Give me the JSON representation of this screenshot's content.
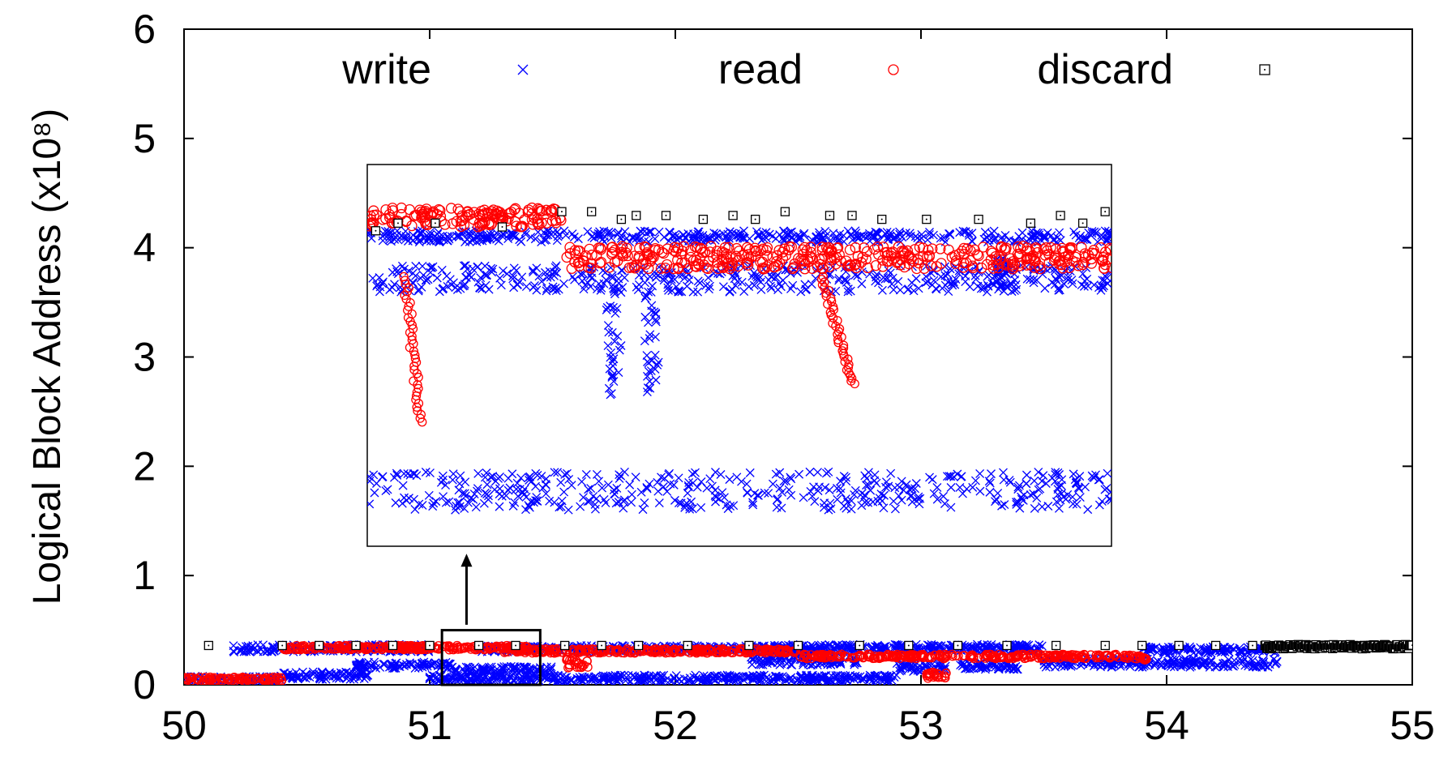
{
  "chart_data": {
    "type": "scatter",
    "title": "",
    "xlabel": "",
    "ylabel": "Logical Block Address (x10⁸)",
    "xlim": [
      50,
      55
    ],
    "ylim": [
      0,
      6
    ],
    "xticks": [
      "50",
      "51",
      "52",
      "53",
      "54",
      "55"
    ],
    "yticks": [
      "0",
      "1",
      "2",
      "3",
      "4",
      "5",
      "6"
    ],
    "grid": false,
    "legend": "top, horizontal",
    "series": [
      {
        "name": "write",
        "marker": "x",
        "color": "#0000ff",
        "bands": [
          {
            "x": [
              50.0,
              50.4
            ],
            "y": [
              0.02,
              0.08
            ]
          },
          {
            "x": [
              50.2,
              51.0
            ],
            "y": [
              0.3,
              0.37
            ]
          },
          {
            "x": [
              50.4,
              50.75
            ],
            "y": [
              0.05,
              0.12
            ]
          },
          {
            "x": [
              50.7,
              51.1
            ],
            "y": [
              0.15,
              0.21
            ]
          },
          {
            "x": [
              51.0,
              52.9
            ],
            "y": [
              0.02,
              0.09
            ]
          },
          {
            "x": [
              51.1,
              51.5
            ],
            "y": [
              0.1,
              0.17
            ]
          },
          {
            "x": [
              51.2,
              52.6
            ],
            "y": [
              0.3,
              0.36
            ]
          },
          {
            "x": [
              52.3,
              52.75
            ],
            "y": [
              0.18,
              0.27
            ]
          },
          {
            "x": [
              52.4,
              53.5
            ],
            "y": [
              0.31,
              0.37
            ]
          },
          {
            "x": [
              52.9,
              53.1
            ],
            "y": [
              0.12,
              0.2
            ]
          },
          {
            "x": [
              53.15,
              53.4
            ],
            "y": [
              0.14,
              0.2
            ]
          },
          {
            "x": [
              53.5,
              54.45
            ],
            "y": [
              0.16,
              0.24
            ]
          },
          {
            "x": [
              53.9,
              54.45
            ],
            "y": [
              0.29,
              0.35
            ]
          }
        ]
      },
      {
        "name": "read",
        "marker": "o",
        "color": "#ff0000",
        "bands": [
          {
            "x": [
              50.0,
              50.4
            ],
            "y": [
              0.03,
              0.07
            ]
          },
          {
            "x": [
              50.4,
              51.4
            ],
            "y": [
              0.32,
              0.36
            ]
          },
          {
            "x": [
              51.3,
              52.5
            ],
            "y": [
              0.29,
              0.33
            ]
          },
          {
            "x": [
              51.55,
              51.65
            ],
            "y": [
              0.15,
              0.25
            ]
          },
          {
            "x": [
              52.5,
              53.85
            ],
            "y": [
              0.24,
              0.28
            ]
          },
          {
            "x": [
              53.02,
              53.12
            ],
            "y": [
              0.06,
              0.12
            ]
          },
          {
            "x": [
              53.85,
              53.92
            ],
            "y": [
              0.22,
              0.27
            ]
          }
        ]
      },
      {
        "name": "discard",
        "marker": "square",
        "color": "#000000",
        "points": [
          [
            50.1,
            0.36
          ],
          [
            50.4,
            0.36
          ],
          [
            50.55,
            0.36
          ],
          [
            50.7,
            0.36
          ],
          [
            50.85,
            0.36
          ],
          [
            51.0,
            0.36
          ],
          [
            51.2,
            0.36
          ],
          [
            51.35,
            0.36
          ],
          [
            51.55,
            0.36
          ],
          [
            51.7,
            0.36
          ],
          [
            51.85,
            0.36
          ],
          [
            52.05,
            0.36
          ],
          [
            52.3,
            0.36
          ],
          [
            52.5,
            0.36
          ],
          [
            52.75,
            0.36
          ],
          [
            52.95,
            0.36
          ],
          [
            53.15,
            0.36
          ],
          [
            53.35,
            0.36
          ],
          [
            53.55,
            0.36
          ],
          [
            53.75,
            0.36
          ],
          [
            53.9,
            0.36
          ],
          [
            54.05,
            0.36
          ],
          [
            54.2,
            0.36
          ],
          [
            54.35,
            0.36
          ]
        ],
        "dense_band": {
          "x": [
            54.4,
            55.0
          ],
          "y": [
            0.33,
            0.37
          ]
        }
      }
    ],
    "highlight_box": {
      "x": [
        51.05,
        51.45
      ],
      "y": [
        0.0,
        0.5
      ]
    },
    "arrow": {
      "from": [
        51.15,
        0.55
      ],
      "to": [
        51.15,
        1.2
      ]
    },
    "inset": {
      "bounds": {
        "x": [
          50.75,
          53.78
        ],
        "y": [
          1.25,
          4.75
        ]
      },
      "write_bands": [
        {
          "x": [
            0.0,
            1.0
          ],
          "y": [
            0.8,
            0.83
          ]
        },
        {
          "x": [
            0.0,
            1.0
          ],
          "y": [
            0.67,
            0.74
          ]
        },
        {
          "x": [
            0.0,
            1.0
          ],
          "y": [
            0.1,
            0.2
          ]
        },
        {
          "x": [
            0.32,
            0.34
          ],
          "y": [
            0.4,
            0.68
          ]
        },
        {
          "x": [
            0.37,
            0.39
          ],
          "y": [
            0.4,
            0.68
          ]
        },
        {
          "x": [
            0.84,
            0.86
          ],
          "y": [
            0.68,
            0.76
          ]
        }
      ],
      "read_bands": [
        {
          "x": [
            0.0,
            0.26
          ],
          "y": [
            0.84,
            0.89
          ]
        },
        {
          "x": [
            0.26,
            0.83
          ],
          "y": [
            0.73,
            0.79
          ]
        },
        {
          "x": [
            0.83,
            1.0
          ],
          "y": [
            0.73,
            0.79
          ]
        }
      ],
      "read_tails": [
        {
          "from": [
            0.05,
            0.71
          ],
          "to": [
            0.07,
            0.33
          ]
        },
        {
          "from": [
            0.61,
            0.71
          ],
          "to": [
            0.65,
            0.43
          ]
        }
      ],
      "discard_points": [
        [
          0.01,
          0.83
        ],
        [
          0.04,
          0.85
        ],
        [
          0.09,
          0.85
        ],
        [
          0.18,
          0.84
        ],
        [
          0.26,
          0.88
        ],
        [
          0.3,
          0.88
        ],
        [
          0.34,
          0.86
        ],
        [
          0.36,
          0.87
        ],
        [
          0.4,
          0.87
        ],
        [
          0.45,
          0.86
        ],
        [
          0.49,
          0.87
        ],
        [
          0.52,
          0.86
        ],
        [
          0.56,
          0.88
        ],
        [
          0.62,
          0.87
        ],
        [
          0.65,
          0.87
        ],
        [
          0.69,
          0.86
        ],
        [
          0.75,
          0.86
        ],
        [
          0.82,
          0.86
        ],
        [
          0.89,
          0.85
        ],
        [
          0.93,
          0.87
        ],
        [
          0.96,
          0.85
        ],
        [
          0.99,
          0.88
        ]
      ]
    }
  }
}
